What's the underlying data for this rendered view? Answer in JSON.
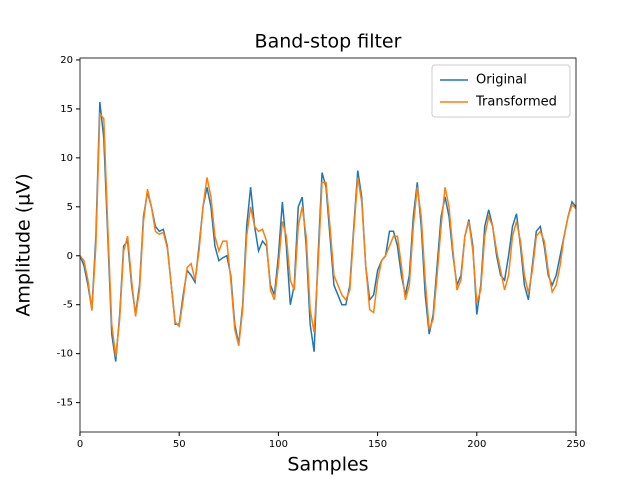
{
  "chart_data": {
    "type": "line",
    "title": "Band-stop filter",
    "x_label": "Samples",
    "y_label": "Amplitude (µV)",
    "x": [
      0,
      2,
      4,
      6,
      8,
      10,
      12,
      14,
      16,
      18,
      20,
      22,
      24,
      26,
      28,
      30,
      32,
      34,
      36,
      38,
      40,
      42,
      44,
      46,
      48,
      50,
      52,
      54,
      56,
      58,
      60,
      62,
      64,
      66,
      68,
      70,
      72,
      74,
      76,
      78,
      80,
      82,
      84,
      86,
      88,
      90,
      92,
      94,
      96,
      98,
      100,
      102,
      104,
      106,
      108,
      110,
      112,
      114,
      116,
      118,
      120,
      122,
      124,
      126,
      128,
      130,
      132,
      134,
      136,
      138,
      140,
      142,
      144,
      146,
      148,
      150,
      152,
      154,
      156,
      158,
      160,
      162,
      164,
      166,
      168,
      170,
      172,
      174,
      176,
      178,
      180,
      182,
      184,
      186,
      188,
      190,
      192,
      194,
      196,
      198,
      200,
      202,
      204,
      206,
      208,
      210,
      212,
      214,
      216,
      218,
      220,
      222,
      224,
      226,
      228,
      230,
      232,
      234,
      236,
      238,
      240,
      242,
      244,
      246,
      248,
      250
    ],
    "series": [
      {
        "name": "Original",
        "color": "#1f77b4",
        "values": [
          0,
          -1,
          -3,
          -5.5,
          2,
          15.7,
          12,
          2,
          -8,
          -10.8,
          -6,
          1,
          1.5,
          -3,
          -6,
          -3,
          4,
          6.5,
          5,
          3,
          2.5,
          2.7,
          1,
          -3,
          -7,
          -7,
          -4,
          -1.5,
          -2,
          -2.7,
          1,
          5,
          7,
          5,
          1,
          -0.5,
          -0.2,
          0,
          -2,
          -7,
          -9,
          -5,
          3,
          7,
          3,
          0.5,
          1.5,
          1,
          -3,
          -4,
          0,
          5.5,
          1,
          -5,
          -3,
          5,
          6,
          1,
          -7,
          -9.8,
          0,
          8.5,
          7,
          2,
          -3,
          -4,
          -5,
          -5,
          -3,
          3,
          8.7,
          6,
          -1,
          -4.5,
          -4,
          -1.5,
          -0.5,
          0,
          2.5,
          2.5,
          1,
          -2,
          -4,
          -2,
          4,
          7.5,
          3,
          -4,
          -8,
          -6,
          -1,
          4,
          6,
          4,
          0,
          -3,
          -2,
          2,
          3.7,
          1,
          -6,
          -3,
          3,
          4.7,
          3,
          0,
          -2,
          -2.5,
          0,
          3,
          4.3,
          1,
          -3,
          -4.5,
          -1,
          2.5,
          3,
          1,
          -2,
          -3,
          -2,
          0,
          2,
          4,
          5.5,
          5
        ]
      },
      {
        "name": "Transformed",
        "color": "#ff7f0e",
        "values": [
          0,
          -0.5,
          -2.5,
          -5.6,
          1,
          14.5,
          14,
          3,
          -7,
          -10.3,
          -6.5,
          0.5,
          2,
          -2.5,
          -6.2,
          -3.5,
          3.5,
          6.8,
          5,
          2.5,
          2.2,
          2.4,
          0.8,
          -3,
          -6.8,
          -7.2,
          -4.5,
          -1.2,
          -0.8,
          -2.5,
          0.5,
          5,
          8,
          6,
          2,
          0.5,
          1.5,
          1.5,
          -2.5,
          -7.5,
          -9.2,
          -5.5,
          2,
          5,
          3,
          2.5,
          2.7,
          1.5,
          -3.5,
          -4.5,
          -1,
          3.5,
          2,
          -2.5,
          -3.5,
          3,
          5,
          2,
          -5.5,
          -7.8,
          -1,
          7.5,
          7.5,
          3,
          -2,
          -3,
          -4,
          -4.5,
          -3.5,
          2.5,
          8,
          5.5,
          -1,
          -5.5,
          -5.8,
          -2.5,
          -0.5,
          0,
          1,
          2,
          2,
          -1,
          -4.5,
          -3,
          3,
          7,
          4,
          -2.5,
          -7.5,
          -6.5,
          -2,
          3,
          7,
          5,
          0.5,
          -3.5,
          -2.5,
          2,
          3.5,
          0.5,
          -4.8,
          -3.5,
          2,
          4,
          3,
          0.5,
          -1.5,
          -3.5,
          -2,
          2,
          3.5,
          1.5,
          -2,
          -3.8,
          -1.5,
          2,
          2.5,
          1.5,
          -1.5,
          -3.7,
          -3,
          -1,
          2,
          4,
          5.2,
          4.8
        ]
      }
    ],
    "xlim": [
      0,
      250
    ],
    "ylim": [
      -18,
      20.2
    ],
    "xticks": [
      0,
      50,
      100,
      150,
      200,
      250
    ],
    "yticks": [
      -15,
      -10,
      -5,
      0,
      5,
      10,
      15,
      20
    ],
    "legend_position": "upper right",
    "grid": false
  }
}
